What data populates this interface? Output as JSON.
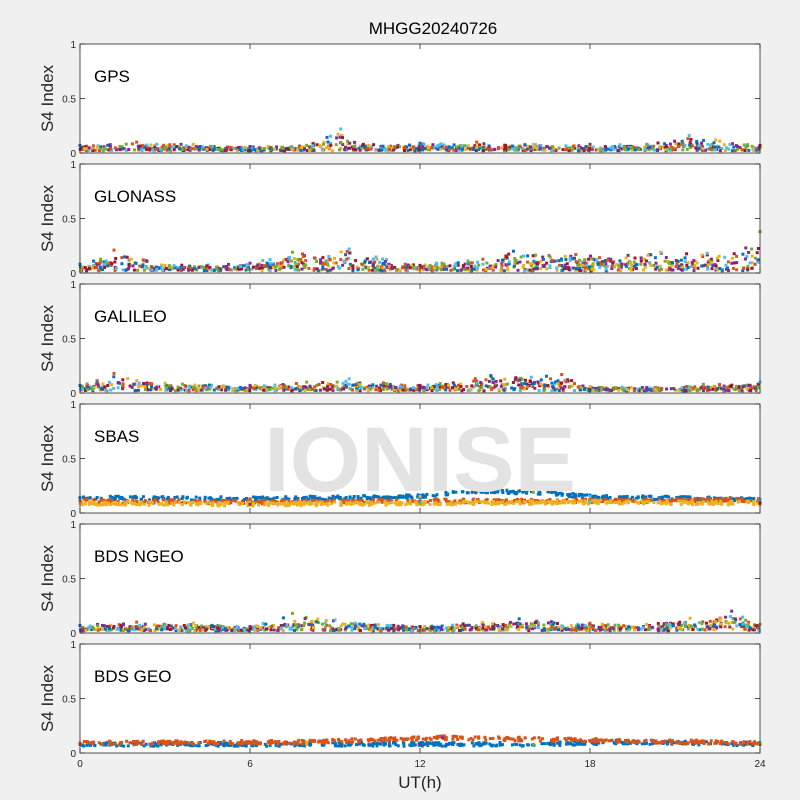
{
  "title": "MHGG20240726",
  "watermark": "IONISE",
  "xlabel": "UT(h)",
  "ylabel": "S4 Index",
  "xticks": [
    "0",
    "6",
    "12",
    "18",
    "24"
  ],
  "yticks": [
    "0",
    "0.5",
    "1"
  ],
  "colors": {
    "figure_bg": "#f0f0f0",
    "axes_bg": "#ffffff",
    "watermark": "#e3e3e3",
    "series": [
      "#0072bd",
      "#d95319",
      "#edb120",
      "#7e2f8e",
      "#77ac30",
      "#4dbeee",
      "#a2142f"
    ]
  },
  "chart_data": [
    {
      "type": "scatter",
      "panel": "GPS",
      "xlim": [
        0,
        24
      ],
      "ylim": [
        0,
        1
      ],
      "x": [
        0,
        2,
        4,
        6,
        8,
        9.2,
        10,
        12,
        14,
        16,
        18,
        20,
        21.5,
        24
      ],
      "y": [
        0.07,
        0.1,
        0.08,
        0.06,
        0.07,
        0.22,
        0.08,
        0.09,
        0.1,
        0.08,
        0.08,
        0.08,
        0.16,
        0.07
      ]
    },
    {
      "type": "scatter",
      "panel": "GLONASS",
      "xlim": [
        0,
        24
      ],
      "ylim": [
        0,
        1
      ],
      "x": [
        0,
        1.2,
        3,
        6,
        7.5,
        9.5,
        12,
        15.3,
        17.5,
        20.5,
        23.5,
        24
      ],
      "y": [
        0.08,
        0.21,
        0.07,
        0.09,
        0.19,
        0.22,
        0.07,
        0.2,
        0.17,
        0.19,
        0.23,
        0.38
      ]
    },
    {
      "type": "scatter",
      "panel": "GALILEO",
      "xlim": [
        0,
        24
      ],
      "ylim": [
        0,
        1
      ],
      "x": [
        0,
        1.2,
        3,
        6,
        8,
        9.5,
        12,
        14.5,
        17,
        18,
        20,
        22,
        24
      ],
      "y": [
        0.07,
        0.18,
        0.09,
        0.07,
        0.1,
        0.13,
        0.07,
        0.16,
        0.17,
        0.06,
        0.05,
        0.08,
        0.1
      ]
    },
    {
      "type": "scatter",
      "panel": "SBAS",
      "xlim": [
        0,
        24
      ],
      "ylim": [
        0,
        1
      ],
      "series": [
        {
          "x": [
            0,
            6,
            12,
            14,
            16,
            18,
            24
          ],
          "y": [
            0.14,
            0.13,
            0.15,
            0.2,
            0.19,
            0.15,
            0.12
          ]
        },
        {
          "x": [
            0,
            6,
            12,
            18,
            24
          ],
          "y": [
            0.11,
            0.1,
            0.11,
            0.11,
            0.12
          ]
        },
        {
          "x": [
            0,
            6,
            12,
            18,
            24
          ],
          "y": [
            0.09,
            0.08,
            0.09,
            0.1,
            0.09
          ]
        }
      ]
    },
    {
      "type": "scatter",
      "panel": "BDS NGEO",
      "xlim": [
        0,
        24
      ],
      "ylim": [
        0,
        1
      ],
      "x": [
        0,
        2,
        4,
        6,
        7.5,
        9,
        12,
        15.5,
        18,
        20,
        23,
        24
      ],
      "y": [
        0.07,
        0.1,
        0.09,
        0.06,
        0.18,
        0.12,
        0.06,
        0.13,
        0.09,
        0.08,
        0.2,
        0.08
      ]
    },
    {
      "type": "scatter",
      "panel": "BDS GEO",
      "xlim": [
        0,
        24
      ],
      "ylim": [
        0,
        1
      ],
      "series": [
        {
          "x": [
            0,
            4,
            8,
            12,
            16,
            19,
            24
          ],
          "y": [
            0.08,
            0.08,
            0.08,
            0.08,
            0.08,
            0.1,
            0.08
          ]
        },
        {
          "x": [
            0,
            8,
            12.8,
            24
          ],
          "y": [
            0.09,
            0.1,
            0.14,
            0.09
          ]
        }
      ]
    }
  ]
}
